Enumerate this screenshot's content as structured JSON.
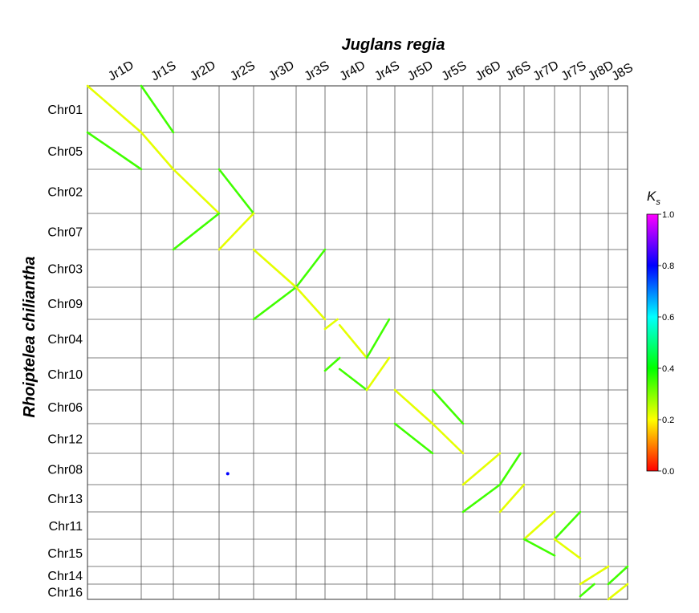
{
  "chart_data": {
    "type": "dotplot",
    "x_title": "Juglans regia",
    "y_title": "Rhoiptelea chiliantha",
    "x_chromosomes": [
      "Jr1D",
      "Jr1S",
      "Jr2D",
      "Jr2S",
      "Jr3D",
      "Jr3S",
      "Jr4D",
      "Jr4S",
      "Jr5D",
      "Jr5S",
      "Jr6D",
      "Jr6S",
      "Jr7D",
      "Jr7S",
      "Jr8D",
      "J8S"
    ],
    "y_chromosomes": [
      "Chr01",
      "Chr05",
      "Chr02",
      "Chr07",
      "Chr03",
      "Chr09",
      "Chr04",
      "Chr10",
      "Chr06",
      "Chr12",
      "Chr08",
      "Chr13",
      "Chr11",
      "Chr15",
      "Chr14",
      "Chr16"
    ],
    "colorbar": {
      "title_main": "K",
      "title_sub": "s",
      "min": 0.0,
      "max": 1.0,
      "ticks": [
        "0.0",
        "0.2",
        "0.4",
        "0.6",
        "0.8",
        "1.0"
      ],
      "colors": [
        "#ff0000",
        "#ffff00",
        "#00ff00",
        "#00ffff",
        "#0000ff",
        "#ff00ff"
      ]
    },
    "segments": [
      {
        "x_chr": "Jr1D",
        "y_chr": "Chr01",
        "x0": 0.0,
        "y0": 1.0,
        "x1": 1.0,
        "y1": 0.0,
        "ks": 0.22
      },
      {
        "x_chr": "Jr1S",
        "y_chr": "Chr01",
        "x0": 0.0,
        "y0": 1.0,
        "x1": 1.0,
        "y1": 0.0,
        "ks": 0.35
      },
      {
        "x_chr": "Jr1D",
        "y_chr": "Chr05",
        "x0": 0.0,
        "y0": 1.0,
        "x1": 1.0,
        "y1": 0.0,
        "ks": 0.35
      },
      {
        "x_chr": "Jr1S",
        "y_chr": "Chr05",
        "x0": 0.0,
        "y0": 1.0,
        "x1": 1.0,
        "y1": 0.0,
        "ks": 0.22
      },
      {
        "x_chr": "Jr2D",
        "y_chr": "Chr02",
        "x0": 0.0,
        "y0": 1.0,
        "x1": 1.0,
        "y1": 0.0,
        "ks": 0.22
      },
      {
        "x_chr": "Jr2S",
        "y_chr": "Chr02",
        "x0": 0.0,
        "y0": 1.0,
        "x1": 1.0,
        "y1": 0.0,
        "ks": 0.35
      },
      {
        "x_chr": "Jr2D",
        "y_chr": "Chr07",
        "x0": 0.0,
        "y0": 0.0,
        "x1": 1.0,
        "y1": 1.0,
        "ks": 0.35
      },
      {
        "x_chr": "Jr2S",
        "y_chr": "Chr07",
        "x0": 0.0,
        "y0": 0.0,
        "x1": 1.0,
        "y1": 1.0,
        "ks": 0.22
      },
      {
        "x_chr": "Jr3D",
        "y_chr": "Chr03",
        "x0": 0.0,
        "y0": 1.0,
        "x1": 1.0,
        "y1": 0.0,
        "ks": 0.22
      },
      {
        "x_chr": "Jr3S",
        "y_chr": "Chr03",
        "x0": 0.0,
        "y0": 0.0,
        "x1": 1.0,
        "y1": 1.0,
        "ks": 0.35
      },
      {
        "x_chr": "Jr3D",
        "y_chr": "Chr09",
        "x0": 0.0,
        "y0": 0.0,
        "x1": 1.0,
        "y1": 1.0,
        "ks": 0.35
      },
      {
        "x_chr": "Jr3S",
        "y_chr": "Chr09",
        "x0": 0.0,
        "y0": 1.0,
        "x1": 1.0,
        "y1": 0.0,
        "ks": 0.22
      },
      {
        "x_chr": "Jr4D",
        "y_chr": "Chr04",
        "x0": 0.0,
        "y0": 0.75,
        "x1": 0.3,
        "y1": 1.0,
        "ks": 0.22
      },
      {
        "x_chr": "Jr4D",
        "y_chr": "Chr04",
        "x0": 0.35,
        "y0": 0.85,
        "x1": 1.0,
        "y1": 0.0,
        "ks": 0.22
      },
      {
        "x_chr": "Jr4S",
        "y_chr": "Chr04",
        "x0": 0.0,
        "y0": 0.0,
        "x1": 0.8,
        "y1": 1.0,
        "ks": 0.35
      },
      {
        "x_chr": "Jr4D",
        "y_chr": "Chr10",
        "x0": 0.0,
        "y0": 0.6,
        "x1": 0.35,
        "y1": 1.0,
        "ks": 0.35
      },
      {
        "x_chr": "Jr4D",
        "y_chr": "Chr10",
        "x0": 0.35,
        "y0": 0.65,
        "x1": 1.0,
        "y1": 0.0,
        "ks": 0.35
      },
      {
        "x_chr": "Jr4S",
        "y_chr": "Chr10",
        "x0": 0.0,
        "y0": 0.0,
        "x1": 0.8,
        "y1": 1.0,
        "ks": 0.22
      },
      {
        "x_chr": "Jr5D",
        "y_chr": "Chr06",
        "x0": 0.0,
        "y0": 1.0,
        "x1": 1.0,
        "y1": 0.0,
        "ks": 0.22
      },
      {
        "x_chr": "Jr5S",
        "y_chr": "Chr06",
        "x0": 0.0,
        "y0": 1.0,
        "x1": 1.0,
        "y1": 0.0,
        "ks": 0.35
      },
      {
        "x_chr": "Jr5D",
        "y_chr": "Chr12",
        "x0": 0.0,
        "y0": 1.0,
        "x1": 1.0,
        "y1": 0.0,
        "ks": 0.35
      },
      {
        "x_chr": "Jr5S",
        "y_chr": "Chr12",
        "x0": 0.0,
        "y0": 1.0,
        "x1": 1.0,
        "y1": 0.0,
        "ks": 0.22
      },
      {
        "x_chr": "Jr6D",
        "y_chr": "Chr08",
        "x0": 0.0,
        "y0": 0.0,
        "x1": 1.0,
        "y1": 1.0,
        "ks": 0.22
      },
      {
        "x_chr": "Jr6S",
        "y_chr": "Chr08",
        "x0": 0.0,
        "y0": 0.0,
        "x1": 0.85,
        "y1": 1.0,
        "ks": 0.35
      },
      {
        "x_chr": "Jr6D",
        "y_chr": "Chr13",
        "x0": 0.0,
        "y0": 0.0,
        "x1": 1.0,
        "y1": 1.0,
        "ks": 0.35
      },
      {
        "x_chr": "Jr6S",
        "y_chr": "Chr13",
        "x0": 0.0,
        "y0": 0.0,
        "x1": 1.0,
        "y1": 1.0,
        "ks": 0.22
      },
      {
        "x_chr": "Jr7D",
        "y_chr": "Chr11",
        "x0": 0.0,
        "y0": 0.0,
        "x1": 1.0,
        "y1": 1.0,
        "ks": 0.22
      },
      {
        "x_chr": "Jr7S",
        "y_chr": "Chr11",
        "x0": 0.0,
        "y0": 0.0,
        "x1": 1.0,
        "y1": 1.0,
        "ks": 0.35
      },
      {
        "x_chr": "Jr7D",
        "y_chr": "Chr15",
        "x0": 0.0,
        "y0": 1.0,
        "x1": 1.0,
        "y1": 0.4,
        "ks": 0.35
      },
      {
        "x_chr": "Jr7S",
        "y_chr": "Chr15",
        "x0": 0.0,
        "y0": 1.0,
        "x1": 1.0,
        "y1": 0.3,
        "ks": 0.22
      },
      {
        "x_chr": "Jr8D",
        "y_chr": "Chr14",
        "x0": 0.0,
        "y0": 0.0,
        "x1": 1.0,
        "y1": 1.0,
        "ks": 0.22
      },
      {
        "x_chr": "J8S",
        "y_chr": "Chr14",
        "x0": 0.0,
        "y0": 0.0,
        "x1": 1.0,
        "y1": 1.0,
        "ks": 0.35
      },
      {
        "x_chr": "Jr8D",
        "y_chr": "Chr16",
        "x0": 0.0,
        "y0": 0.2,
        "x1": 0.5,
        "y1": 1.0,
        "ks": 0.35
      },
      {
        "x_chr": "J8S",
        "y_chr": "Chr16",
        "x0": 0.0,
        "y0": 0.0,
        "x1": 1.0,
        "y1": 1.0,
        "ks": 0.22
      }
    ],
    "points": [
      {
        "x_chr": "Jr2S",
        "y_chr": "Chr08",
        "x": 0.25,
        "y": 0.35,
        "ks": 0.8
      }
    ]
  }
}
